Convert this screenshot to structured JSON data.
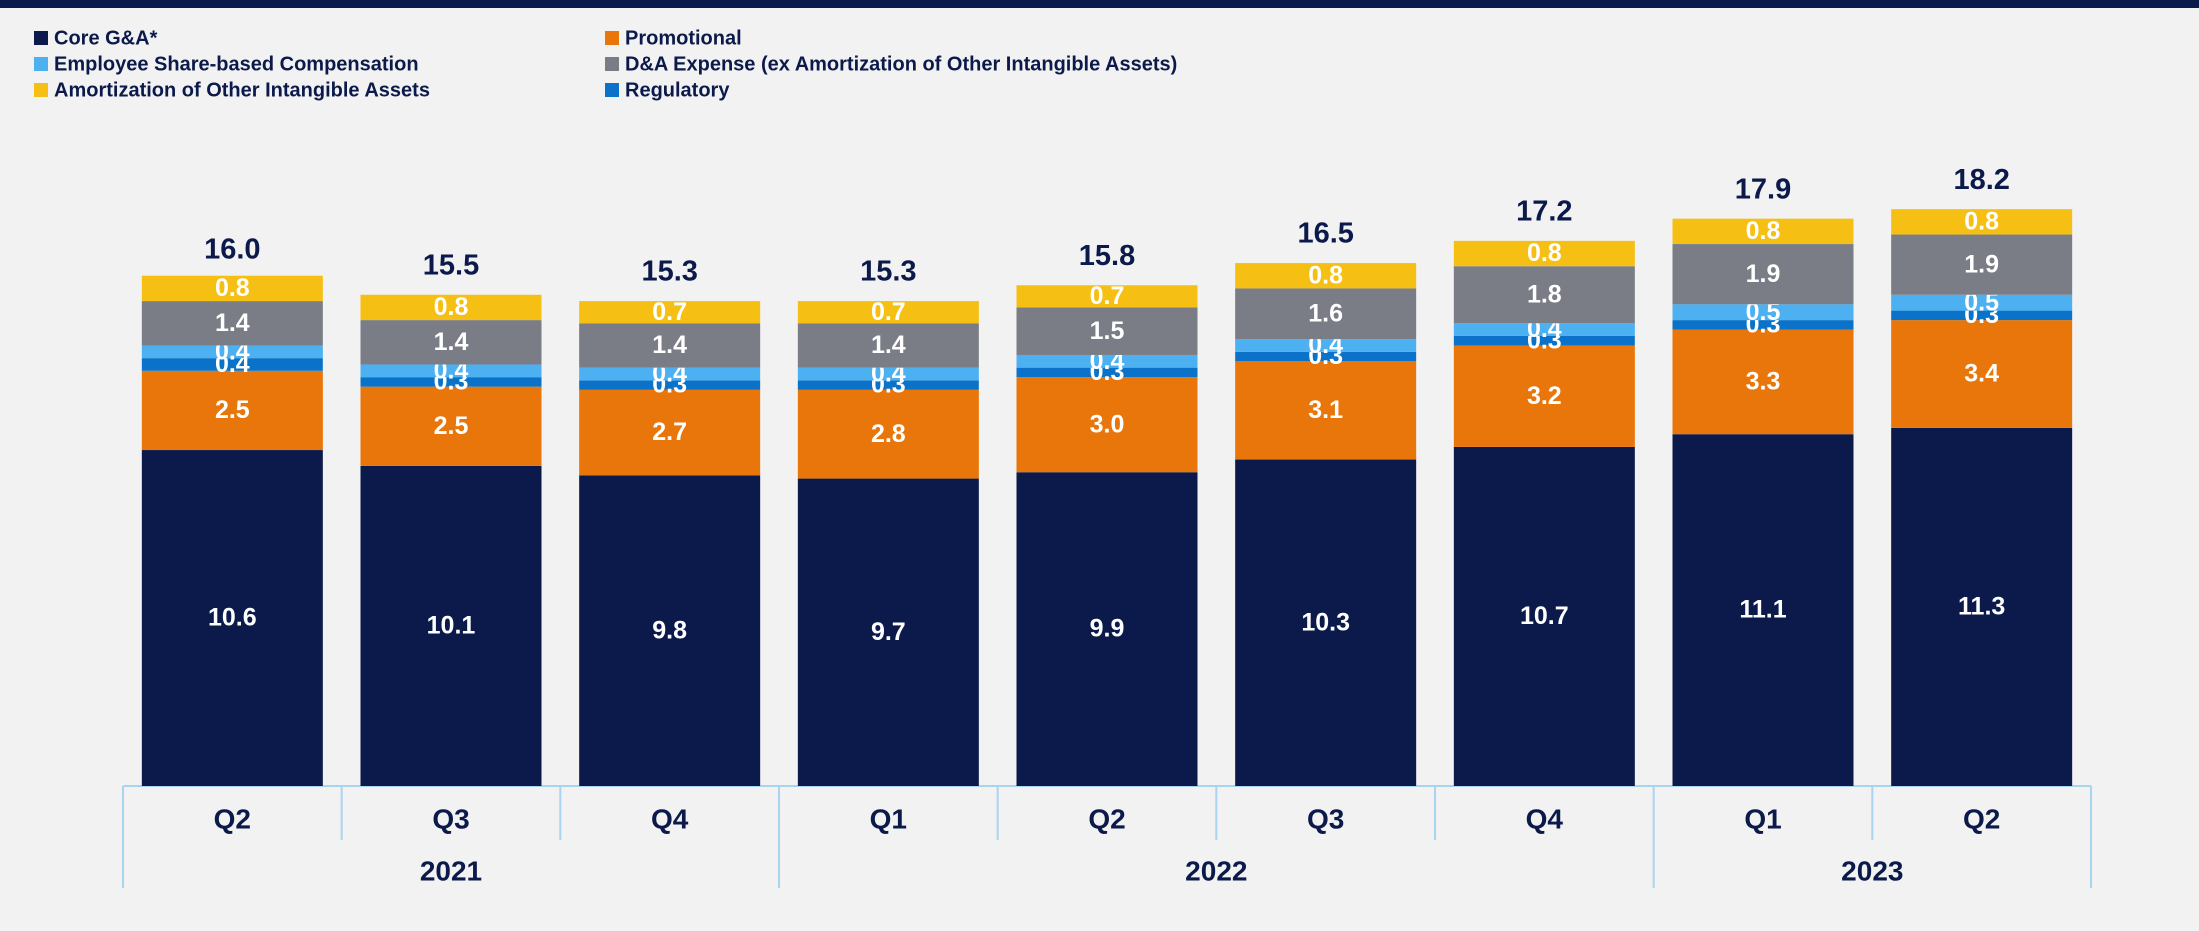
{
  "chart_data": {
    "type": "stacked_bar",
    "categories": [
      "Q2",
      "Q3",
      "Q4",
      "Q1",
      "Q2",
      "Q3",
      "Q4",
      "Q1",
      "Q2"
    ],
    "groups": [
      {
        "label": "2021",
        "size": 3
      },
      {
        "label": "2022",
        "size": 4
      },
      {
        "label": "2023",
        "size": 2
      }
    ],
    "ylim": [
      0,
      24.8
    ],
    "series": [
      {
        "name": "Core G&A*",
        "color": "#0b1a4a",
        "values": [
          10.6,
          10.1,
          9.8,
          9.7,
          9.9,
          10.3,
          10.7,
          11.1,
          11.3
        ]
      },
      {
        "name": "Promotional",
        "color": "#e8760a",
        "values": [
          2.5,
          2.5,
          2.7,
          2.8,
          3,
          3.1,
          3.2,
          3.3,
          3.4
        ],
        "value_labels": [
          "2.5",
          "2.5",
          "2.7",
          "2.8",
          "3.0",
          "3.1",
          "3.2",
          "3.3",
          "3.4"
        ]
      },
      {
        "name": "Regulatory",
        "color": "#0a73c9",
        "values": [
          0.4,
          0.3,
          0.3,
          0.3,
          0.3,
          0.3,
          0.3,
          0.3,
          0.3
        ]
      },
      {
        "name": "Employee Share-based Compensation",
        "color": "#4db0f0",
        "values": [
          0.4,
          0.4,
          0.4,
          0.4,
          0.4,
          0.4,
          0.4,
          0.5,
          0.5
        ]
      },
      {
        "name": "D&A Expense (ex Amortization of Other Intangible Assets)",
        "color": "#7a7d85",
        "values": [
          1.4,
          1.4,
          1.4,
          1.4,
          1.5,
          1.6,
          1.8,
          1.9,
          1.9
        ]
      },
      {
        "name": "Amortization of Other Intangible Assets",
        "color": "#f5bf14",
        "values": [
          0.8,
          0.8,
          0.7,
          0.7,
          0.7,
          0.8,
          0.8,
          0.8,
          0.8
        ]
      }
    ],
    "totals": [
      16,
      15.5,
      15.3,
      15.3,
      15.8,
      16.5,
      17.2,
      17.9,
      18.2
    ],
    "total_labels": [
      "16.0",
      "15.5",
      "15.3",
      "15.3",
      "15.8",
      "16.5",
      "17.2",
      "17.9",
      "18.2"
    ]
  }
}
